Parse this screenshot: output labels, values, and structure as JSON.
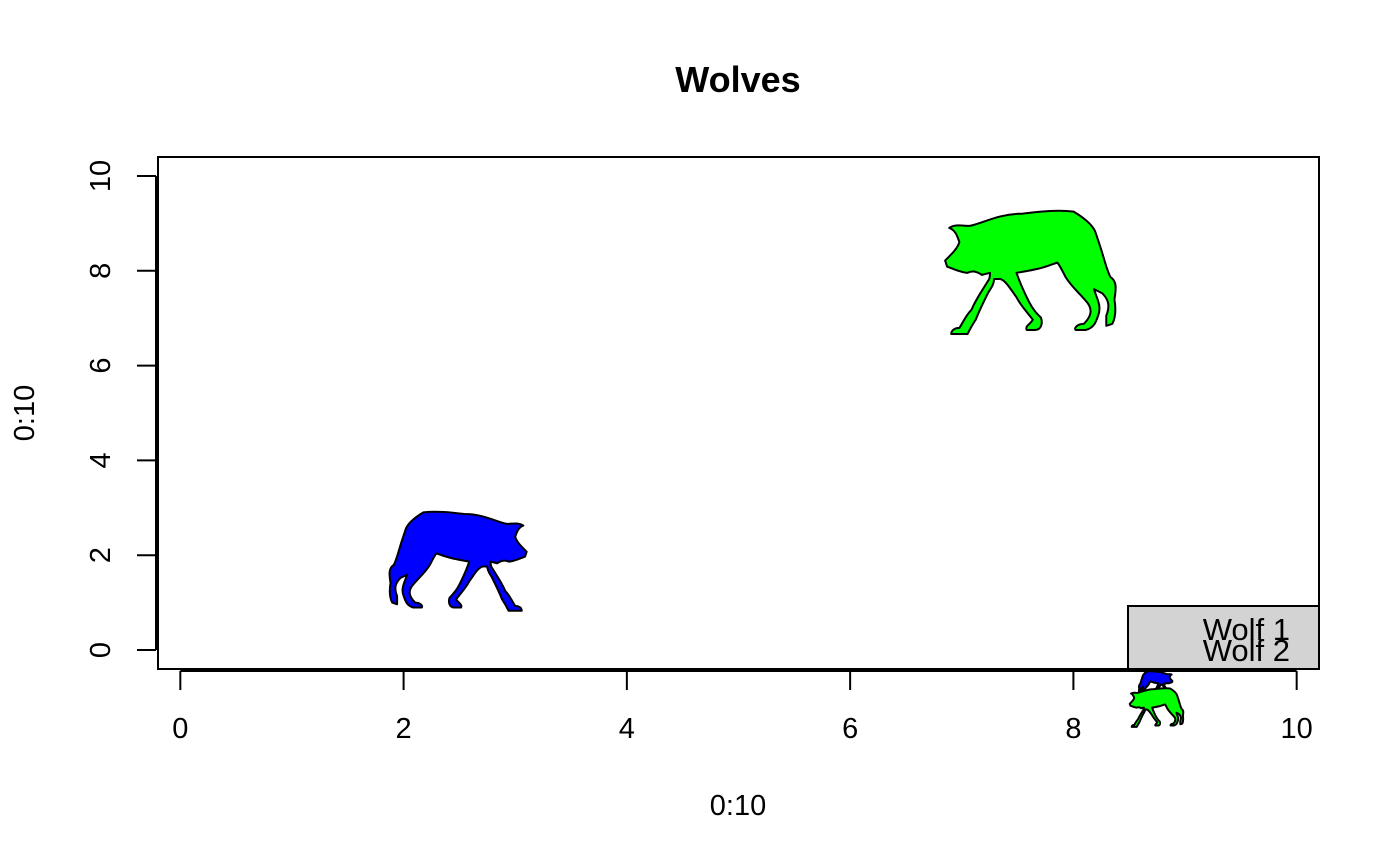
{
  "chart_data": {
    "type": "scatter",
    "title": "Wolves",
    "xlabel": "0:10",
    "ylabel": "0:10",
    "xlim": [
      -0.2,
      10.2
    ],
    "ylim": [
      -0.4,
      10.4
    ],
    "x_ticks": [
      "0",
      "2",
      "4",
      "6",
      "8",
      "10"
    ],
    "y_ticks": [
      "0",
      "2",
      "4",
      "6",
      "8",
      "10"
    ],
    "grid": false,
    "series": [
      {
        "name": "Wolf 1",
        "color": "#0000ff",
        "marker": "wolf-silhouette",
        "points": [
          {
            "x": 2.5,
            "y": 1.9
          }
        ]
      },
      {
        "name": "Wolf 2",
        "color": "#00ff00",
        "marker": "wolf-silhouette",
        "points": [
          {
            "x": 7.6,
            "y": 8.0
          }
        ]
      }
    ],
    "legend": {
      "position": "bottom-right",
      "background": "#d3d3d3",
      "entries": [
        "Wolf 1",
        "Wolf 2"
      ]
    }
  }
}
